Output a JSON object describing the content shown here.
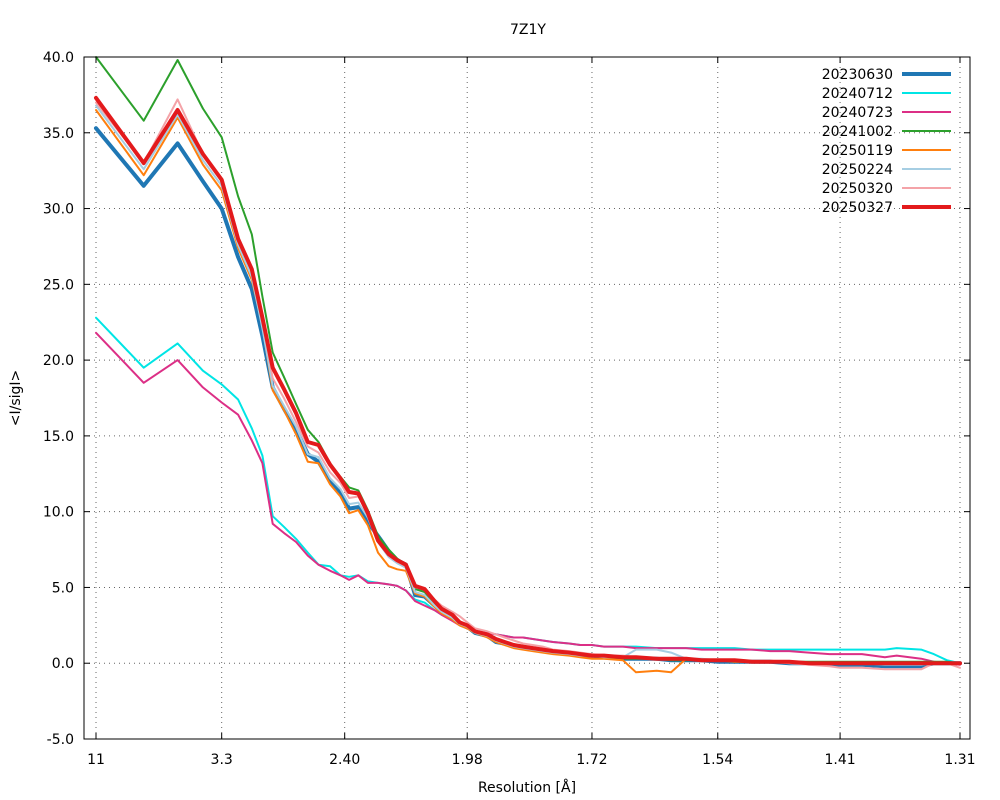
{
  "chart_data": {
    "type": "line",
    "title": "7Z1Y",
    "xlabel": "Resolution [Å]",
    "ylabel": "<I/sigI>",
    "ylim": [
      -5.0,
      40.0
    ],
    "yticks": [
      "-5.0",
      "0.0",
      "5.0",
      "10.0",
      "15.0",
      "20.0",
      "25.0",
      "30.0",
      "35.0",
      "40.0"
    ],
    "xtick_labels": [
      "11",
      "3.3",
      "2.40",
      "1.98",
      "1.72",
      "1.54",
      "1.41",
      "1.31"
    ],
    "xtick_values": [
      11,
      3.3,
      2.4,
      1.98,
      1.72,
      1.54,
      1.41,
      1.31
    ],
    "x_scale": "1/d^2",
    "grid": true,
    "legend_position": "top-right",
    "series": [
      {
        "name": "20230630",
        "color": "#1f77b4",
        "x": [
          11.0,
          5.0,
          4.0,
          3.55,
          3.3,
          3.12,
          2.99,
          2.9,
          2.82,
          2.74,
          2.66,
          2.59,
          2.53,
          2.47,
          2.42,
          2.38,
          2.34,
          2.3,
          2.26,
          2.22,
          2.19,
          2.16,
          2.13,
          2.1,
          2.07,
          2.05,
          2.02,
          2.0,
          1.98,
          1.96,
          1.93,
          1.91,
          1.89,
          1.87,
          1.85,
          1.83,
          1.81,
          1.79,
          1.76,
          1.74,
          1.72,
          1.7,
          1.67,
          1.65,
          1.62,
          1.6,
          1.58,
          1.56,
          1.54,
          1.52,
          1.5,
          1.48,
          1.46,
          1.44,
          1.42,
          1.41,
          1.39,
          1.37,
          1.36,
          1.34,
          1.33,
          1.32,
          1.31
        ],
        "y": [
          35.3,
          31.5,
          34.3,
          31.8,
          30.0,
          26.8,
          24.7,
          21.6,
          18.2,
          16.8,
          15.4,
          13.8,
          13.3,
          12.0,
          11.3,
          10.2,
          10.3,
          9.3,
          8.4,
          7.4,
          6.8,
          6.5,
          4.5,
          4.4,
          3.8,
          3.5,
          3.2,
          2.6,
          2.4,
          2.0,
          1.8,
          1.4,
          1.3,
          1.1,
          1.0,
          0.9,
          0.8,
          0.7,
          0.6,
          0.5,
          0.5,
          0.4,
          0.3,
          0.3,
          0.3,
          0.2,
          0.2,
          0.2,
          0.1,
          0.1,
          0.1,
          0.1,
          0.0,
          0.0,
          -0.1,
          -0.1,
          -0.1,
          -0.2,
          -0.2,
          -0.2,
          0.0,
          0.0,
          0.0
        ],
        "width": 4
      },
      {
        "name": "20240712",
        "color": "#00e5e5",
        "x": [
          11.0,
          5.0,
          4.0,
          3.55,
          3.3,
          3.12,
          2.99,
          2.9,
          2.82,
          2.74,
          2.66,
          2.59,
          2.53,
          2.47,
          2.42,
          2.38,
          2.34,
          2.3,
          2.26,
          2.22,
          2.19,
          2.16,
          2.13,
          2.1,
          2.07,
          2.05,
          2.02,
          2.0,
          1.98,
          1.96,
          1.93,
          1.91,
          1.89,
          1.87,
          1.85,
          1.83,
          1.81,
          1.79,
          1.76,
          1.74,
          1.72,
          1.7,
          1.67,
          1.65,
          1.62,
          1.6,
          1.58,
          1.56,
          1.54,
          1.52,
          1.5,
          1.48,
          1.46,
          1.44,
          1.42,
          1.41,
          1.39,
          1.37,
          1.36,
          1.34,
          1.33,
          1.32,
          1.31
        ],
        "y": [
          22.8,
          19.5,
          21.1,
          19.3,
          18.4,
          17.4,
          15.5,
          13.7,
          9.7,
          9.0,
          8.2,
          7.3,
          6.5,
          6.4,
          5.8,
          5.7,
          5.8,
          5.4,
          5.3,
          5.2,
          5.1,
          4.8,
          4.2,
          4.0,
          3.5,
          3.2,
          2.9,
          2.5,
          2.3,
          2.1,
          2.0,
          1.9,
          1.8,
          1.7,
          1.7,
          1.6,
          1.5,
          1.4,
          1.3,
          1.2,
          1.2,
          1.1,
          1.1,
          1.1,
          1.0,
          1.0,
          1.0,
          1.0,
          1.0,
          1.0,
          0.9,
          0.9,
          0.9,
          0.9,
          0.9,
          0.9,
          0.9,
          0.9,
          1.0,
          0.9,
          0.6,
          0.2,
          0.0
        ],
        "width": 2
      },
      {
        "name": "20240723",
        "color": "#dc2f86",
        "x": [
          11.0,
          5.0,
          4.0,
          3.55,
          3.3,
          3.12,
          2.99,
          2.9,
          2.82,
          2.74,
          2.66,
          2.59,
          2.53,
          2.47,
          2.42,
          2.38,
          2.34,
          2.3,
          2.26,
          2.22,
          2.19,
          2.16,
          2.13,
          2.1,
          2.07,
          2.05,
          2.02,
          2.0,
          1.98,
          1.96,
          1.93,
          1.91,
          1.89,
          1.87,
          1.85,
          1.83,
          1.81,
          1.79,
          1.76,
          1.74,
          1.72,
          1.7,
          1.67,
          1.65,
          1.62,
          1.6,
          1.58,
          1.56,
          1.54,
          1.52,
          1.5,
          1.48,
          1.46,
          1.44,
          1.42,
          1.41,
          1.39,
          1.37,
          1.36,
          1.34,
          1.33,
          1.32,
          1.31
        ],
        "y": [
          21.8,
          18.5,
          20.0,
          18.2,
          17.2,
          16.4,
          14.7,
          13.2,
          9.2,
          8.6,
          8.0,
          7.1,
          6.5,
          6.1,
          5.8,
          5.5,
          5.8,
          5.3,
          5.3,
          5.2,
          5.1,
          4.8,
          4.1,
          3.8,
          3.5,
          3.2,
          2.8,
          2.5,
          2.3,
          2.1,
          2.0,
          1.9,
          1.8,
          1.7,
          1.7,
          1.6,
          1.5,
          1.4,
          1.3,
          1.2,
          1.2,
          1.1,
          1.1,
          1.0,
          1.0,
          1.0,
          1.0,
          0.9,
          0.9,
          0.9,
          0.9,
          0.8,
          0.8,
          0.7,
          0.6,
          0.6,
          0.6,
          0.4,
          0.5,
          0.3,
          0.1,
          0.0,
          -0.1
        ],
        "width": 2
      },
      {
        "name": "20241002",
        "color": "#2ca02c",
        "x": [
          11.0,
          5.0,
          4.0,
          3.55,
          3.3,
          3.12,
          2.99,
          2.9,
          2.82,
          2.74,
          2.66,
          2.59,
          2.53,
          2.47,
          2.42,
          2.38,
          2.34,
          2.3,
          2.26,
          2.22,
          2.19,
          2.16,
          2.13,
          2.1,
          2.07,
          2.05,
          2.02,
          2.0,
          1.98,
          1.96,
          1.93,
          1.91,
          1.89,
          1.87,
          1.85,
          1.83,
          1.81,
          1.79,
          1.76,
          1.74,
          1.72,
          1.7,
          1.67,
          1.65,
          1.62,
          1.6,
          1.58,
          1.56,
          1.54,
          1.52,
          1.5,
          1.48,
          1.46,
          1.44,
          1.42,
          1.41,
          1.39,
          1.37,
          1.36,
          1.34,
          1.33,
          1.32,
          1.31
        ],
        "y": [
          40.0,
          35.8,
          39.8,
          36.6,
          34.7,
          30.8,
          28.3,
          24.2,
          20.5,
          18.9,
          17.1,
          15.4,
          14.6,
          13.2,
          12.3,
          11.6,
          11.4,
          10.1,
          8.4,
          7.5,
          6.9,
          6.5,
          4.9,
          4.7,
          3.9,
          3.4,
          3.0,
          2.6,
          2.4,
          2.0,
          1.8,
          1.5,
          1.3,
          1.1,
          1.0,
          0.9,
          0.8,
          0.7,
          0.6,
          0.5,
          0.5,
          0.4,
          0.3,
          0.3,
          0.3,
          0.2,
          0.2,
          0.2,
          0.2,
          0.1,
          0.1,
          0.1,
          0.1,
          0.1,
          0.1,
          0.1,
          0.1,
          0.1,
          0.1,
          0.1,
          0.1,
          0.1,
          0.0
        ],
        "width": 2
      },
      {
        "name": "20250119",
        "color": "#ff7f0e",
        "x": [
          11.0,
          5.0,
          4.0,
          3.55,
          3.3,
          3.12,
          2.99,
          2.9,
          2.82,
          2.74,
          2.66,
          2.59,
          2.53,
          2.47,
          2.42,
          2.38,
          2.34,
          2.3,
          2.26,
          2.22,
          2.19,
          2.16,
          2.13,
          2.1,
          2.07,
          2.05,
          2.02,
          2.0,
          1.98,
          1.96,
          1.93,
          1.91,
          1.89,
          1.87,
          1.85,
          1.83,
          1.81,
          1.79,
          1.76,
          1.74,
          1.72,
          1.7,
          1.67,
          1.65,
          1.62,
          1.6,
          1.58,
          1.56,
          1.54,
          1.52,
          1.5,
          1.48,
          1.46,
          1.44,
          1.42,
          1.41,
          1.39,
          1.37,
          1.36,
          1.34,
          1.33,
          1.32,
          1.31
        ],
        "y": [
          36.5,
          32.2,
          36.0,
          32.9,
          31.2,
          27.4,
          25.3,
          22.3,
          18.0,
          16.7,
          15.1,
          13.3,
          13.2,
          11.8,
          11.0,
          9.9,
          10.1,
          9.1,
          7.3,
          6.4,
          6.2,
          6.1,
          4.6,
          4.4,
          3.7,
          3.3,
          2.9,
          2.5,
          2.3,
          2.0,
          1.7,
          1.4,
          1.2,
          1.0,
          0.9,
          0.8,
          0.7,
          0.6,
          0.5,
          0.4,
          0.3,
          0.3,
          0.2,
          -0.6,
          -0.5,
          -0.6,
          0.3,
          0.2,
          0.2,
          0.1,
          0.1,
          0.1,
          0.1,
          0.0,
          0.0,
          0.0,
          0.0,
          0.0,
          0.0,
          0.0,
          0.0,
          0.0,
          0.0
        ],
        "width": 2
      },
      {
        "name": "20250224",
        "color": "#a6cee3",
        "x": [
          11.0,
          5.0,
          4.0,
          3.55,
          3.3,
          3.12,
          2.99,
          2.9,
          2.82,
          2.74,
          2.66,
          2.59,
          2.53,
          2.47,
          2.42,
          2.38,
          2.34,
          2.3,
          2.26,
          2.22,
          2.19,
          2.16,
          2.13,
          2.1,
          2.07,
          2.05,
          2.02,
          2.0,
          1.98,
          1.96,
          1.93,
          1.91,
          1.89,
          1.87,
          1.85,
          1.83,
          1.81,
          1.79,
          1.76,
          1.74,
          1.72,
          1.7,
          1.67,
          1.65,
          1.62,
          1.6,
          1.58,
          1.56,
          1.54,
          1.52,
          1.5,
          1.48,
          1.46,
          1.44,
          1.42,
          1.41,
          1.39,
          1.37,
          1.36,
          1.34,
          1.33,
          1.32,
          1.31
        ],
        "y": [
          36.8,
          32.6,
          36.2,
          33.2,
          31.5,
          27.6,
          25.5,
          22.1,
          18.3,
          17.0,
          15.6,
          13.8,
          13.6,
          12.2,
          11.5,
          10.5,
          10.6,
          9.6,
          8.0,
          7.0,
          6.6,
          6.3,
          4.7,
          4.5,
          3.8,
          3.4,
          3.0,
          2.6,
          2.4,
          2.0,
          1.8,
          1.5,
          1.3,
          1.1,
          1.0,
          0.9,
          0.8,
          0.7,
          0.6,
          0.5,
          0.5,
          0.4,
          0.4,
          0.9,
          0.9,
          0.7,
          0.3,
          0.3,
          0.2,
          0.2,
          0.1,
          0.1,
          0.1,
          0.0,
          0.0,
          0.0,
          0.0,
          -0.1,
          -0.1,
          -0.1,
          0.0,
          0.0,
          0.0
        ],
        "width": 2
      },
      {
        "name": "20250320",
        "color": "#f4a3a8",
        "x": [
          11.0,
          5.0,
          4.0,
          3.55,
          3.3,
          3.12,
          2.99,
          2.9,
          2.82,
          2.74,
          2.66,
          2.59,
          2.53,
          2.47,
          2.42,
          2.38,
          2.34,
          2.3,
          2.26,
          2.22,
          2.19,
          2.16,
          2.13,
          2.1,
          2.07,
          2.05,
          2.02,
          2.0,
          1.98,
          1.96,
          1.93,
          1.91,
          1.89,
          1.87,
          1.85,
          1.83,
          1.81,
          1.79,
          1.76,
          1.74,
          1.72,
          1.7,
          1.67,
          1.65,
          1.62,
          1.6,
          1.58,
          1.56,
          1.54,
          1.52,
          1.5,
          1.48,
          1.46,
          1.44,
          1.42,
          1.41,
          1.39,
          1.37,
          1.36,
          1.34,
          1.33,
          1.32,
          1.31
        ],
        "y": [
          37.0,
          33.0,
          37.2,
          33.6,
          31.9,
          27.9,
          25.9,
          22.7,
          18.8,
          17.5,
          15.9,
          14.3,
          13.9,
          12.6,
          11.9,
          10.9,
          11.0,
          10.0,
          8.2,
          7.1,
          6.7,
          6.4,
          5.0,
          4.9,
          4.2,
          3.8,
          3.4,
          3.1,
          2.7,
          2.3,
          2.1,
          1.9,
          1.7,
          1.5,
          1.3,
          1.2,
          1.1,
          0.9,
          0.8,
          0.7,
          0.6,
          0.5,
          0.5,
          0.4,
          0.3,
          0.3,
          0.3,
          0.2,
          0.2,
          0.2,
          0.1,
          0.1,
          0.0,
          -0.1,
          -0.2,
          -0.3,
          -0.3,
          -0.4,
          -0.4,
          -0.4,
          0.0,
          0.0,
          -0.3
        ],
        "width": 2
      },
      {
        "name": "20250327",
        "color": "#e31a1c",
        "x": [
          11.0,
          5.0,
          4.0,
          3.55,
          3.3,
          3.12,
          2.99,
          2.9,
          2.82,
          2.74,
          2.66,
          2.59,
          2.53,
          2.47,
          2.42,
          2.38,
          2.34,
          2.3,
          2.26,
          2.22,
          2.19,
          2.16,
          2.13,
          2.1,
          2.07,
          2.05,
          2.02,
          2.0,
          1.98,
          1.96,
          1.93,
          1.91,
          1.89,
          1.87,
          1.85,
          1.83,
          1.81,
          1.79,
          1.76,
          1.74,
          1.72,
          1.7,
          1.67,
          1.65,
          1.62,
          1.6,
          1.58,
          1.56,
          1.54,
          1.52,
          1.5,
          1.48,
          1.46,
          1.44,
          1.42,
          1.41,
          1.39,
          1.37,
          1.36,
          1.34,
          1.33,
          1.32,
          1.31
        ],
        "y": [
          37.3,
          33.0,
          36.5,
          33.6,
          31.9,
          28.0,
          26.0,
          22.8,
          19.5,
          18.1,
          16.5,
          14.6,
          14.4,
          13.1,
          12.2,
          11.3,
          11.2,
          9.9,
          8.1,
          7.2,
          6.8,
          6.5,
          5.1,
          4.9,
          4.1,
          3.6,
          3.2,
          2.7,
          2.5,
          2.1,
          1.9,
          1.6,
          1.4,
          1.2,
          1.1,
          1.0,
          0.9,
          0.8,
          0.7,
          0.6,
          0.5,
          0.5,
          0.4,
          0.4,
          0.3,
          0.3,
          0.3,
          0.2,
          0.2,
          0.2,
          0.1,
          0.1,
          0.1,
          0.0,
          0.0,
          0.0,
          0.0,
          0.0,
          0.0,
          0.0,
          0.0,
          0.0,
          0.0
        ],
        "width": 4
      }
    ]
  }
}
